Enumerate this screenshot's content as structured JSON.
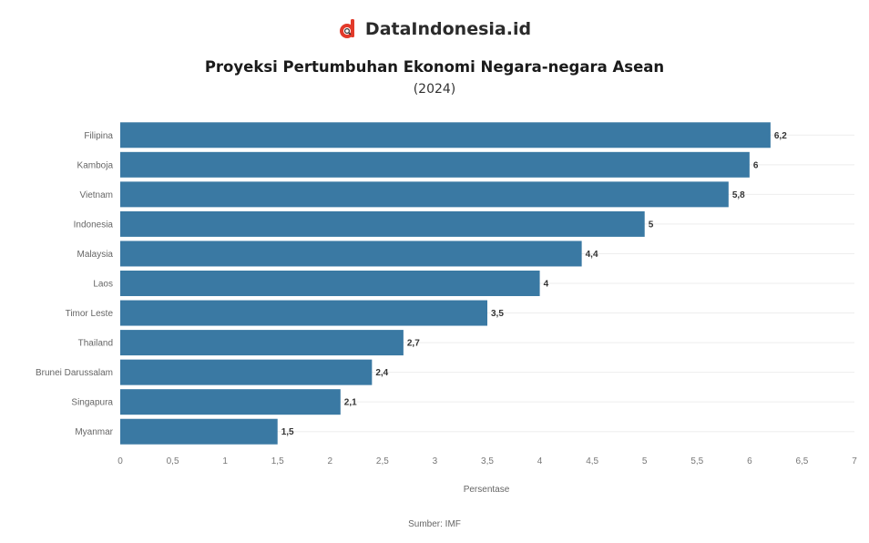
{
  "header": {
    "brand_name": "DataIndonesia.id",
    "logo_icon": "dataindonesia-logo-icon",
    "accent_color": "#e23a2a"
  },
  "chart_data": {
    "type": "bar",
    "orientation": "horizontal",
    "title": "Proyeksi Pertumbuhan Ekonomi Negara-negara Asean",
    "subtitle": "(2024)",
    "xlabel": "Persentase",
    "ylabel": "",
    "categories": [
      "Filipina",
      "Kamboja",
      "Vietnam",
      "Indonesia",
      "Malaysia",
      "Laos",
      "Timor Leste",
      "Thailand",
      "Brunei Darussalam",
      "Singapura",
      "Myanmar"
    ],
    "values": [
      6.2,
      6,
      5.8,
      5,
      4.4,
      4,
      3.5,
      2.7,
      2.4,
      2.1,
      1.5
    ],
    "value_labels": [
      "6,2",
      "6",
      "5,8",
      "5",
      "4,4",
      "4",
      "3,5",
      "2,7",
      "2,4",
      "2,1",
      "1,5"
    ],
    "xlim": [
      0,
      7
    ],
    "x_ticks": [
      0,
      0.5,
      1,
      1.5,
      2,
      2.5,
      3,
      3.5,
      4,
      4.5,
      5,
      5.5,
      6,
      6.5,
      7
    ],
    "x_tick_labels": [
      "0",
      "0,5",
      "1",
      "1,5",
      "2",
      "2,5",
      "3",
      "3,5",
      "4",
      "4,5",
      "5",
      "5,5",
      "6",
      "6,5",
      "7"
    ],
    "bar_color": "#3a79a3",
    "grid": true
  },
  "footer": {
    "source": "Sumber: IMF"
  }
}
